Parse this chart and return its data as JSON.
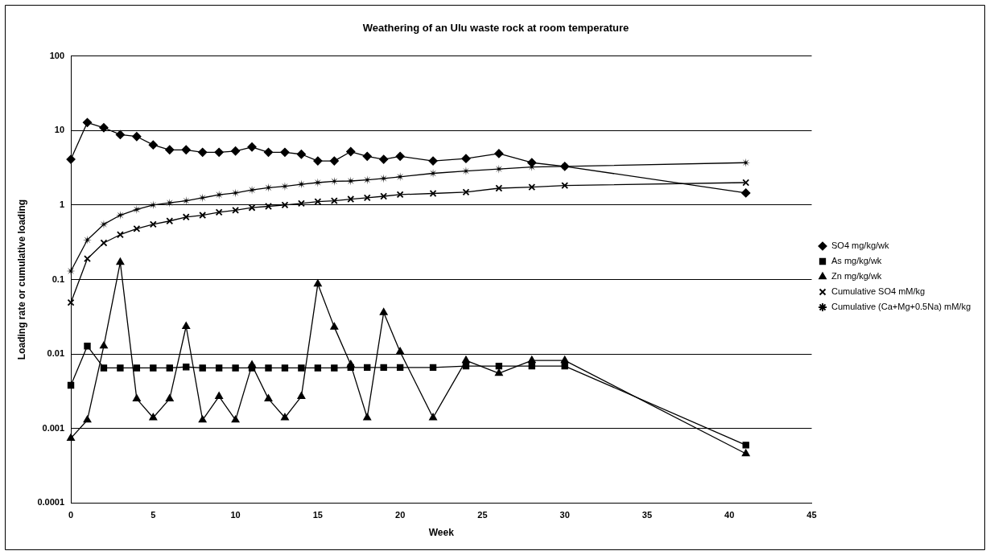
{
  "chart_data": {
    "type": "line",
    "title": "Weathering of an Ulu waste rock at room temperature",
    "xlabel": "Week",
    "ylabel": "Loading rate or cumulative loading",
    "x": [
      0,
      1,
      2,
      3,
      4,
      5,
      6,
      7,
      8,
      9,
      10,
      11,
      12,
      13,
      14,
      15,
      16,
      17,
      18,
      19,
      20,
      22,
      24,
      26,
      28,
      30,
      41
    ],
    "series": [
      {
        "name": "SO4 mg/kg/wk",
        "color": "#000000",
        "marker": "diamond",
        "values": [
          4.1,
          12.8,
          10.9,
          8.8,
          8.3,
          6.4,
          5.5,
          5.5,
          5.1,
          5.1,
          5.3,
          6.0,
          5.1,
          5.1,
          4.8,
          3.9,
          3.9,
          5.2,
          4.5,
          4.1,
          4.5,
          3.9,
          4.2,
          4.9,
          3.7,
          3.3,
          1.45
        ]
      },
      {
        "name": "As mg/kg/wk",
        "color": "#000000",
        "marker": "square",
        "values": [
          0.0038,
          0.0128,
          0.0065,
          0.0065,
          0.0065,
          0.0065,
          0.0065,
          0.0067,
          0.0065,
          0.0065,
          0.0065,
          0.0065,
          0.0065,
          0.0065,
          0.0065,
          0.0065,
          0.0065,
          0.0066,
          0.0066,
          0.0066,
          0.0066,
          0.0066,
          0.0069,
          0.0069,
          0.0069,
          0.0069,
          0.0006
        ]
      },
      {
        "name": "Zn mg/kg/wk",
        "color": "#000000",
        "marker": "triangle",
        "values": [
          0.00074,
          0.0013,
          0.0128,
          0.17,
          0.0025,
          0.0014,
          0.0025,
          0.0235,
          0.0013,
          0.0027,
          0.0013,
          0.0071,
          0.0025,
          0.0014,
          0.0027,
          0.087,
          0.023,
          0.0072,
          0.0014,
          0.036,
          0.0107,
          0.0014,
          0.0082,
          0.0055,
          0.0082,
          0.0082,
          0.00046
        ]
      },
      {
        "name": "Cumulative SO4 mM/kg",
        "color": "#000000",
        "marker": "cross",
        "values": [
          0.049,
          0.19,
          0.31,
          0.4,
          0.48,
          0.55,
          0.61,
          0.69,
          0.73,
          0.8,
          0.85,
          0.92,
          0.96,
          1.0,
          1.05,
          1.11,
          1.14,
          1.2,
          1.25,
          1.31,
          1.38,
          1.43,
          1.49,
          1.68,
          1.74,
          1.83,
          2.0
        ]
      },
      {
        "name": "Cumulative (Ca+Mg+0.5Na) mM/kg",
        "color": "#000000",
        "marker": "star",
        "values": [
          0.13,
          0.34,
          0.55,
          0.73,
          0.87,
          1.0,
          1.07,
          1.14,
          1.25,
          1.37,
          1.45,
          1.59,
          1.71,
          1.78,
          1.9,
          2.0,
          2.08,
          2.1,
          2.17,
          2.27,
          2.39,
          2.66,
          2.86,
          3.04,
          3.24,
          3.3,
          3.7
        ]
      }
    ],
    "xlim": [
      0,
      45
    ],
    "xticks": [
      0,
      5,
      10,
      15,
      20,
      25,
      30,
      35,
      40,
      45
    ],
    "ylim": [
      0.0001,
      100
    ],
    "yticks": [
      0.0001,
      0.001,
      0.01,
      0.1,
      1,
      10,
      100
    ],
    "log": "y",
    "grid": "y",
    "legend": "right",
    "line_style": "solid"
  }
}
